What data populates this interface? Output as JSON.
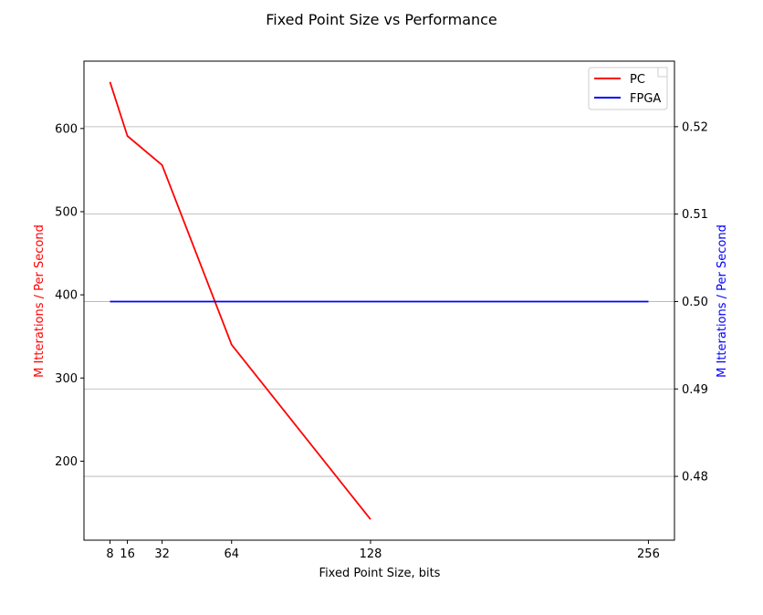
{
  "chart_data": {
    "type": "line",
    "title": "Fixed Point Size vs Performance",
    "xlabel": "Fixed Point Size, bits",
    "ylabel_left": "M Itterations / Per Second",
    "ylabel_right": "M Itterations / Per Second",
    "x_ticks": [
      8,
      16,
      32,
      64,
      128,
      256
    ],
    "xlim": [
      -4,
      268
    ],
    "ylim_left": [
      105,
      681
    ],
    "y_ticks_left": [
      200,
      300,
      400,
      500,
      600
    ],
    "ylim_right": [
      0.4727,
      0.5275
    ],
    "y_ticks_right": [
      0.48,
      0.49,
      0.5,
      0.51,
      0.52
    ],
    "grid": "horizontal, right axis",
    "legend_position": "upper right",
    "series": [
      {
        "name": "PC",
        "axis": "left",
        "color": "#ff0000",
        "x": [
          8,
          16,
          32,
          64,
          128
        ],
        "y": [
          656,
          591,
          556,
          340,
          130
        ]
      },
      {
        "name": "FPGA",
        "axis": "right",
        "color": "#0000ff",
        "x": [
          8,
          256
        ],
        "y": [
          0.5,
          0.5
        ]
      }
    ]
  }
}
